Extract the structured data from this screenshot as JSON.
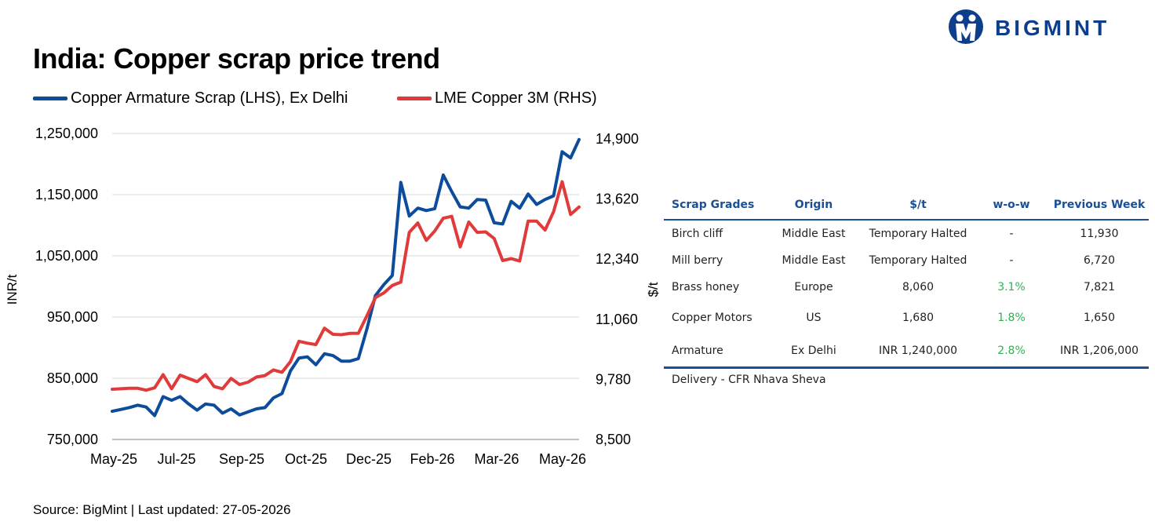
{
  "header": {
    "title": "India: Copper scrap price trend",
    "brand": "BIGMINT"
  },
  "legend": {
    "series1": "Copper Armature Scrap (LHS), Ex Delhi",
    "series2": "LME Copper 3M (RHS)"
  },
  "footer": {
    "source": "Source: BigMint | Last updated: 27-05-2026",
    "delivery": "Delivery - CFR Nhava Sheva"
  },
  "colors": {
    "series1": "#0d4c9b",
    "series2": "#e03a3a",
    "brand": "#0d3e8c",
    "table_header": "#1a4f95",
    "positive": "#2eb254"
  },
  "table": {
    "headers": [
      "Scrap Grades",
      "Origin",
      "$/t",
      "w-o-w",
      "Previous Week"
    ],
    "rows": [
      [
        "Birch cliff",
        "Middle East",
        "Temporary Halted",
        "-",
        "11,930"
      ],
      [
        "Mill berry",
        "Middle East",
        "Temporary Halted",
        "-",
        "6,720"
      ],
      [
        "Brass honey",
        "Europe",
        "8,060",
        "3.1%",
        "7,821"
      ],
      [
        "Copper Motors",
        "US",
        "1,680",
        "1.8%",
        "1,650"
      ],
      [
        "Armature",
        "Ex Delhi",
        "INR 1,240,000",
        "2.8%",
        "INR 1,206,000"
      ]
    ]
  },
  "chart_data": {
    "type": "line",
    "ylabel": "INR/t",
    "y2label": "$/t",
    "ylim": [
      750000,
      1250000
    ],
    "y2lim": [
      8500,
      14900
    ],
    "yticks": [
      "1,250,000",
      "1,150,000",
      "1,050,000",
      "950,000",
      "850,000",
      "750,000"
    ],
    "y2ticks": [
      "14,900",
      "13,620",
      "12,340",
      "11,060",
      "9,780",
      "8,500"
    ],
    "xticks": [
      "May-25",
      "Jul-25",
      "Sep-25",
      "Oct-25",
      "Dec-25",
      "Feb-26",
      "Mar-26",
      "May-26"
    ],
    "grid": "horizontal",
    "legend_position": "top-left",
    "series": [
      {
        "name": "Copper Armature Scrap (LHS), Ex Delhi",
        "axis": "left",
        "values": [
          796000,
          799000,
          802000,
          806000,
          803000,
          789000,
          820000,
          814000,
          820000,
          808000,
          798000,
          808000,
          806000,
          793000,
          800000,
          790000,
          795000,
          800000,
          802000,
          818000,
          825000,
          862000,
          883000,
          885000,
          872000,
          890000,
          887000,
          878000,
          878000,
          882000,
          930000,
          985000,
          1003000,
          1018000,
          1170000,
          1115000,
          1128000,
          1124000,
          1127000,
          1182000,
          1155000,
          1130000,
          1128000,
          1142000,
          1141000,
          1104000,
          1102000,
          1139000,
          1128000,
          1151000,
          1134000,
          1142000,
          1148000,
          1220000,
          1210000,
          1240000
        ]
      },
      {
        "name": "LME Copper 3M (RHS)",
        "axis": "right",
        "values": [
          9570,
          9580,
          9590,
          9590,
          9550,
          9600,
          9880,
          9580,
          9870,
          9800,
          9730,
          9880,
          9630,
          9580,
          9800,
          9670,
          9720,
          9830,
          9860,
          9980,
          9930,
          10160,
          10590,
          10550,
          10520,
          10870,
          10740,
          10730,
          10760,
          10760,
          11130,
          11520,
          11620,
          11780,
          11850,
          12910,
          13110,
          12740,
          12940,
          13210,
          13250,
          12600,
          13130,
          12910,
          12920,
          12780,
          12310,
          12350,
          12300,
          13150,
          13150,
          12960,
          13350,
          13990,
          13290,
          13450
        ]
      }
    ]
  }
}
